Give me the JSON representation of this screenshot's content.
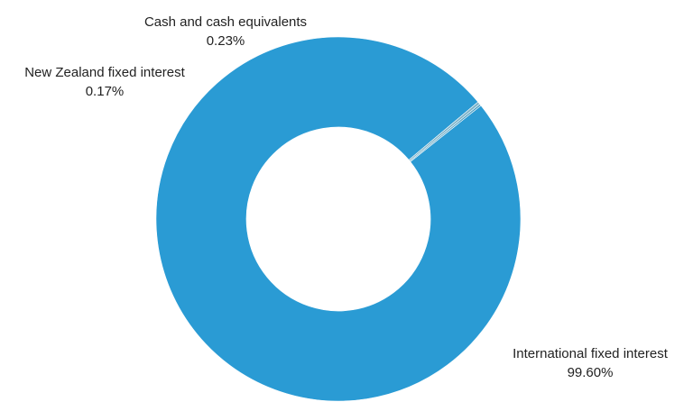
{
  "chart_data": {
    "type": "pie",
    "style": "donut",
    "labels": [
      "International fixed interest",
      "New Zealand fixed interest",
      "Cash and cash equivalents"
    ],
    "values": [
      99.6,
      0.17,
      0.23
    ],
    "value_labels": [
      "99.60%",
      "0.17%",
      "0.23%"
    ],
    "colors": [
      "#2a9bd4",
      "#4d9fc4",
      "#7fb3c8"
    ],
    "start_angle_deg": -40,
    "direction": "counterclockwise",
    "legend": "none"
  }
}
